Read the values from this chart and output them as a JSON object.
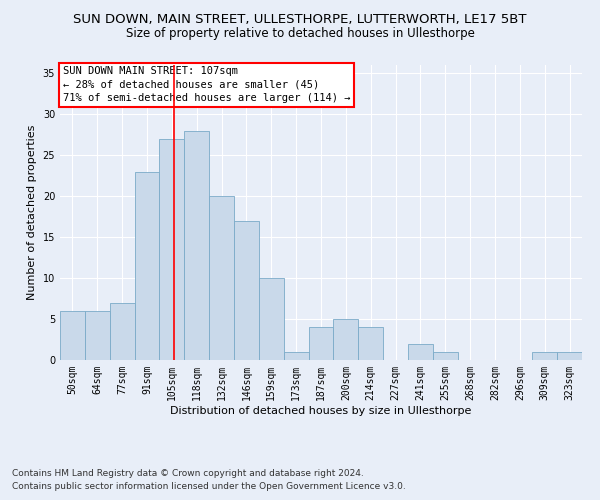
{
  "title": "SUN DOWN, MAIN STREET, ULLESTHORPE, LUTTERWORTH, LE17 5BT",
  "subtitle": "Size of property relative to detached houses in Ullesthorpe",
  "xlabel": "Distribution of detached houses by size in Ullesthorpe",
  "ylabel": "Number of detached properties",
  "bar_color": "#c9d9ea",
  "bar_edge_color": "#7aaac8",
  "categories": [
    "50sqm",
    "64sqm",
    "77sqm",
    "91sqm",
    "105sqm",
    "118sqm",
    "132sqm",
    "146sqm",
    "159sqm",
    "173sqm",
    "187sqm",
    "200sqm",
    "214sqm",
    "227sqm",
    "241sqm",
    "255sqm",
    "268sqm",
    "282sqm",
    "296sqm",
    "309sqm",
    "323sqm"
  ],
  "values": [
    6,
    6,
    7,
    23,
    27,
    28,
    20,
    17,
    10,
    1,
    4,
    5,
    4,
    0,
    2,
    1,
    0,
    0,
    0,
    1,
    1
  ],
  "ylim": [
    0,
    36
  ],
  "yticks": [
    0,
    5,
    10,
    15,
    20,
    25,
    30,
    35
  ],
  "red_line_x": 4.07,
  "annotation_title": "SUN DOWN MAIN STREET: 107sqm",
  "annotation_line1": "← 28% of detached houses are smaller (45)",
  "annotation_line2": "71% of semi-detached houses are larger (114) →",
  "footer1": "Contains HM Land Registry data © Crown copyright and database right 2024.",
  "footer2": "Contains public sector information licensed under the Open Government Licence v3.0.",
  "bg_color": "#e8eef8",
  "plot_bg_color": "#e8eef8",
  "grid_color": "#ffffff",
  "title_fontsize": 9.5,
  "subtitle_fontsize": 8.5,
  "axis_label_fontsize": 8,
  "tick_fontsize": 7,
  "footer_fontsize": 6.5,
  "ann_fontsize": 7.5
}
